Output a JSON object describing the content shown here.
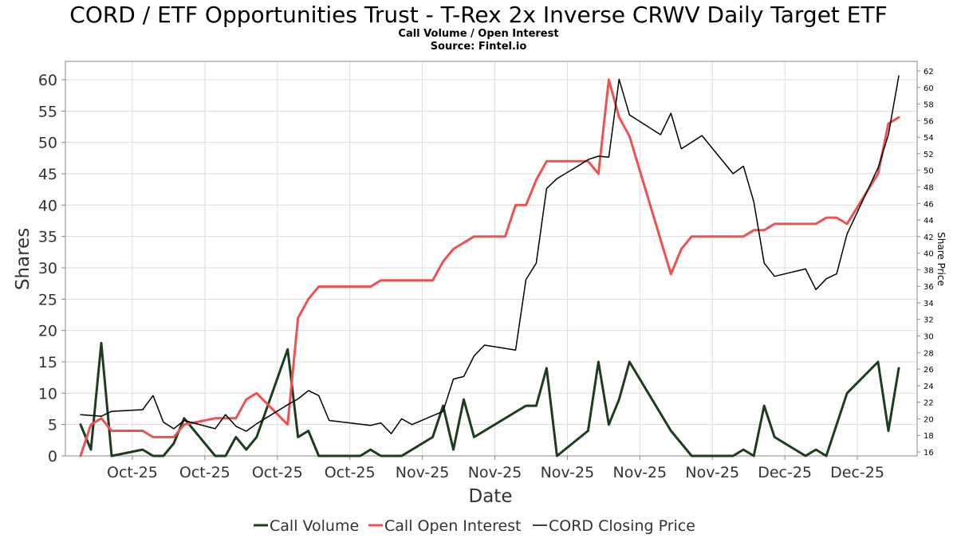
{
  "header": {
    "title": "CORD / ETF Opportunities Trust - T-Rex 2x Inverse CRWV Daily Target ETF",
    "subtitle": "Call Volume / Open Interest",
    "source": "Source: Fintel.io"
  },
  "colors": {
    "call_volume": "#1e3d1e",
    "call_open_interest": "#f05050",
    "closing_price": "#000000",
    "grid": "#dddddd"
  },
  "chart_data": {
    "type": "line",
    "title": "CORD / ETF Opportunities Trust - T-Rex 2x Inverse CRWV Daily Target ETF",
    "subtitle": "Call Volume / Open Interest",
    "xlabel": "Date",
    "ylabel": "Shares",
    "y2label": "Share Price",
    "ylim": [
      0,
      60
    ],
    "y2lim": [
      16,
      62
    ],
    "yticks": [
      0,
      5,
      10,
      15,
      20,
      25,
      30,
      35,
      40,
      45,
      50,
      55,
      60
    ],
    "y2ticks": [
      16,
      18,
      20,
      22,
      24,
      26,
      28,
      30,
      32,
      34,
      36,
      38,
      40,
      42,
      44,
      46,
      48,
      50,
      52,
      54,
      56,
      58,
      60,
      62
    ],
    "xlim": [
      0,
      78
    ],
    "xticks": [
      {
        "x": 5,
        "label": "Oct-25"
      },
      {
        "x": 12,
        "label": "Oct-25"
      },
      {
        "x": 19,
        "label": "Oct-25"
      },
      {
        "x": 26,
        "label": "Oct-25"
      },
      {
        "x": 33,
        "label": "Nov-25"
      },
      {
        "x": 40,
        "label": "Nov-25"
      },
      {
        "x": 47,
        "label": "Nov-25"
      },
      {
        "x": 54,
        "label": "Nov-25"
      },
      {
        "x": 61,
        "label": "Nov-25"
      },
      {
        "x": 68,
        "label": "Dec-25"
      },
      {
        "x": 75,
        "label": "Dec-25"
      }
    ],
    "grid": true,
    "legend_position": "bottom",
    "series": [
      {
        "name": "Call Volume",
        "axis": "left",
        "points": [
          [
            0,
            5
          ],
          [
            1,
            1
          ],
          [
            2,
            18
          ],
          [
            3,
            0
          ],
          [
            6,
            1
          ],
          [
            7,
            0
          ],
          [
            8,
            0
          ],
          [
            9,
            2
          ],
          [
            10,
            6
          ],
          [
            13,
            0
          ],
          [
            14,
            0
          ],
          [
            15,
            3
          ],
          [
            16,
            1
          ],
          [
            17,
            3
          ],
          [
            20,
            17
          ],
          [
            21,
            3
          ],
          [
            22,
            4
          ],
          [
            23,
            0
          ],
          [
            27,
            0
          ],
          [
            28,
            1
          ],
          [
            29,
            0
          ],
          [
            31,
            0
          ],
          [
            34,
            3
          ],
          [
            35,
            8
          ],
          [
            36,
            1
          ],
          [
            37,
            9
          ],
          [
            38,
            3
          ],
          [
            42,
            7
          ],
          [
            43,
            8
          ],
          [
            44,
            8
          ],
          [
            45,
            14
          ],
          [
            46,
            0
          ],
          [
            49,
            4
          ],
          [
            50,
            15
          ],
          [
            51,
            5
          ],
          [
            52,
            9
          ],
          [
            53,
            15
          ],
          [
            57,
            4
          ],
          [
            59,
            0
          ],
          [
            63,
            0
          ],
          [
            64,
            1
          ],
          [
            65,
            0
          ],
          [
            66,
            8
          ],
          [
            67,
            3
          ],
          [
            70,
            0
          ],
          [
            71,
            1
          ],
          [
            72,
            0
          ],
          [
            74,
            10
          ],
          [
            77,
            15
          ],
          [
            78,
            4
          ],
          [
            79,
            14
          ]
        ]
      },
      {
        "name": "Call Open Interest",
        "axis": "left",
        "points": [
          [
            0,
            0
          ],
          [
            1,
            5
          ],
          [
            2,
            6
          ],
          [
            3,
            4
          ],
          [
            6,
            4
          ],
          [
            7,
            3
          ],
          [
            9,
            3
          ],
          [
            10,
            5
          ],
          [
            13,
            6
          ],
          [
            14,
            6
          ],
          [
            15,
            6
          ],
          [
            16,
            9
          ],
          [
            17,
            10
          ],
          [
            20,
            5
          ],
          [
            21,
            22
          ],
          [
            22,
            25
          ],
          [
            23,
            27
          ],
          [
            28,
            27
          ],
          [
            29,
            28
          ],
          [
            34,
            28
          ],
          [
            35,
            31
          ],
          [
            36,
            33
          ],
          [
            38,
            35
          ],
          [
            41,
            35
          ],
          [
            42,
            40
          ],
          [
            43,
            40
          ],
          [
            44,
            44
          ],
          [
            45,
            47
          ],
          [
            48,
            47
          ],
          [
            49,
            47
          ],
          [
            50,
            45
          ],
          [
            51,
            60
          ],
          [
            52,
            54
          ],
          [
            53,
            51
          ],
          [
            57,
            29
          ],
          [
            58,
            33
          ],
          [
            59,
            35
          ],
          [
            63,
            35
          ],
          [
            64,
            35
          ],
          [
            65,
            36
          ],
          [
            66,
            36
          ],
          [
            67,
            37
          ],
          [
            71,
            37
          ],
          [
            72,
            38
          ],
          [
            73,
            38
          ],
          [
            74,
            37
          ],
          [
            77,
            45
          ],
          [
            78,
            53
          ],
          [
            79,
            54
          ]
        ]
      },
      {
        "name": "CORD Closing Price",
        "axis": "right",
        "points": [
          [
            0,
            20.5
          ],
          [
            2,
            20.3
          ],
          [
            3,
            20.9
          ],
          [
            6,
            21.1
          ],
          [
            7,
            22.8
          ],
          [
            8,
            19.6
          ],
          [
            9,
            18.8
          ],
          [
            10,
            19.8
          ],
          [
            13,
            18.8
          ],
          [
            14,
            20.5
          ],
          [
            15,
            19.1
          ],
          [
            16,
            18.5
          ],
          [
            17,
            19.4
          ],
          [
            20,
            21.7
          ],
          [
            21,
            22.4
          ],
          [
            22,
            23.4
          ],
          [
            23,
            22.8
          ],
          [
            24,
            19.8
          ],
          [
            28,
            19.2
          ],
          [
            29,
            19.5
          ],
          [
            30,
            18.2
          ],
          [
            31,
            20.0
          ],
          [
            32,
            19.3
          ],
          [
            35,
            20.9
          ],
          [
            36,
            24.8
          ],
          [
            37,
            25.1
          ],
          [
            38,
            27.6
          ],
          [
            39,
            28.9
          ],
          [
            42,
            28.3
          ],
          [
            43,
            36.8
          ],
          [
            44,
            38.8
          ],
          [
            45,
            47.8
          ],
          [
            46,
            49.0
          ],
          [
            48,
            50.5
          ],
          [
            49,
            51.3
          ],
          [
            50,
            51.7
          ],
          [
            51,
            51.6
          ],
          [
            52,
            61.0
          ],
          [
            53,
            56.7
          ],
          [
            56,
            54.3
          ],
          [
            57,
            56.9
          ],
          [
            58,
            52.6
          ],
          [
            60,
            54.2
          ],
          [
            63,
            49.6
          ],
          [
            64,
            50.5
          ],
          [
            65,
            46.2
          ],
          [
            66,
            38.8
          ],
          [
            67,
            37.2
          ],
          [
            70,
            38.1
          ],
          [
            71,
            35.6
          ],
          [
            72,
            36.9
          ],
          [
            73,
            37.5
          ],
          [
            74,
            42.3
          ],
          [
            77,
            50.3
          ],
          [
            78,
            54.3
          ],
          [
            79,
            61.4
          ]
        ]
      }
    ]
  }
}
